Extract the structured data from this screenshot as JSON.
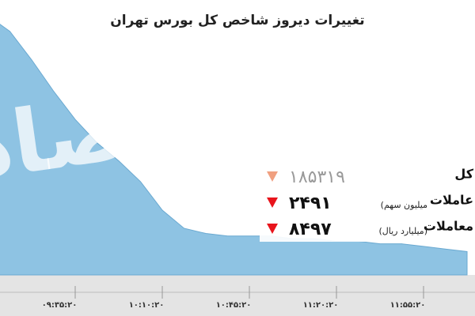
{
  "chart_data": {
    "type": "area",
    "title": "تغییرات دیروز شاخص کل بورس تهران",
    "watermark": "دنیای اقتصاد",
    "categories": [
      null,
      null,
      null,
      null,
      "۰۹:۳۵:۲۰",
      null,
      null,
      null,
      "۱۰:۱۰:۲۰",
      null,
      null,
      null,
      "۱۰:۴۵:۲۰",
      null,
      null,
      null,
      "۱۱:۲۰:۲۰",
      null,
      null,
      null,
      "۱۱:۵۵:۲۰",
      null,
      null
    ],
    "values": [
      100,
      94,
      83,
      71,
      60,
      51,
      44,
      36,
      25,
      18,
      16,
      15,
      15,
      15,
      14,
      14,
      13,
      13,
      12,
      12,
      11,
      10,
      9
    ],
    "ylim": [
      0,
      100
    ],
    "color": "#8ec3e3",
    "stats": [
      {
        "label": "کل",
        "unit": null,
        "value": "۱۸۵۳۱۹",
        "color": "#f0a080"
      },
      {
        "label": "عاملات",
        "unit": "(میلیون سهم",
        "value": "۲۴۹۱",
        "color": "#e8141c"
      },
      {
        "label": "معاملات",
        "unit": "(میلیارد ریال)",
        "value": "۸۴۹۷",
        "color": "#e8141c"
      }
    ]
  }
}
